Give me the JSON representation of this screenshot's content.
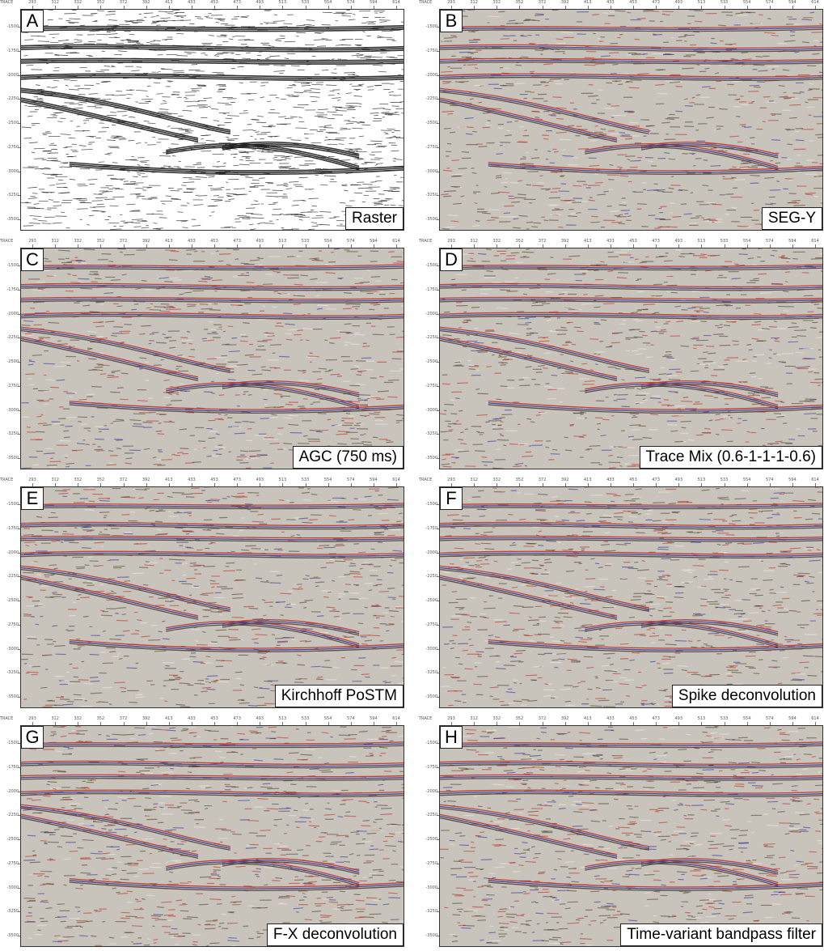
{
  "axis": {
    "trace_label": "TRACE",
    "traces": [
      "293",
      "312",
      "332",
      "352",
      "372",
      "392",
      "413",
      "433",
      "453",
      "473",
      "493",
      "513",
      "533",
      "554",
      "574",
      "594",
      "614"
    ],
    "times": [
      "-1500",
      "-1750",
      "-2000",
      "-2250",
      "-2500",
      "-2750",
      "-3000",
      "-3250",
      "-3500"
    ]
  },
  "panels": [
    {
      "letter": "A",
      "caption": "Raster",
      "style": "raster"
    },
    {
      "letter": "B",
      "caption": "SEG-Y",
      "style": "color"
    },
    {
      "letter": "C",
      "caption": "AGC (750 ms)",
      "style": "color"
    },
    {
      "letter": "D",
      "caption": "Trace Mix (0.6-1-1-1-0.6)",
      "style": "color"
    },
    {
      "letter": "E",
      "caption": "Kirchhoff PoSTM",
      "style": "color"
    },
    {
      "letter": "F",
      "caption": "Spike deconvolution",
      "style": "color"
    },
    {
      "letter": "G",
      "caption": "F-X deconvolution",
      "style": "color"
    },
    {
      "letter": "H",
      "caption": "Time-variant bandpass filter",
      "style": "color"
    }
  ],
  "colors": {
    "background": "#c9c4bb",
    "peak": "#b82a1e",
    "trough": "#2c2f9a",
    "dark": "#4a3b28",
    "raster_ink": "#111111"
  }
}
